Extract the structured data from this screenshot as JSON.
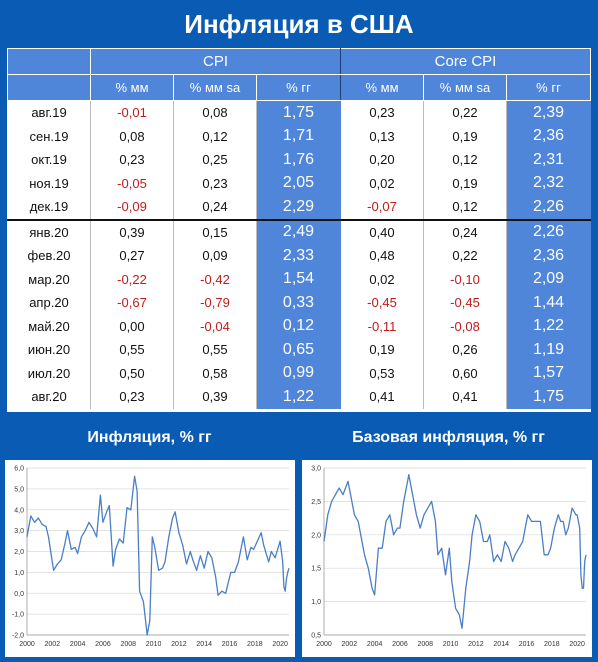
{
  "title": "Инфляция в США",
  "table": {
    "group_headers": [
      "CPI",
      "Core CPI"
    ],
    "sub_headers": [
      "% мм",
      "% мм sa",
      "% гг",
      "% мм",
      "% мм sa",
      "% гг"
    ],
    "rows": [
      {
        "label": "авг.19",
        "cpi_mm": "-0,01",
        "cpi_mm_sa": "0,08",
        "cpi_yy": "1,75",
        "core_mm": "0,23",
        "core_mm_sa": "0,22",
        "core_yy": "2,39"
      },
      {
        "label": "сен.19",
        "cpi_mm": "0,08",
        "cpi_mm_sa": "0,12",
        "cpi_yy": "1,71",
        "core_mm": "0,13",
        "core_mm_sa": "0,19",
        "core_yy": "2,36"
      },
      {
        "label": "окт.19",
        "cpi_mm": "0,23",
        "cpi_mm_sa": "0,25",
        "cpi_yy": "1,76",
        "core_mm": "0,20",
        "core_mm_sa": "0,12",
        "core_yy": "2,31"
      },
      {
        "label": "ноя.19",
        "cpi_mm": "-0,05",
        "cpi_mm_sa": "0,23",
        "cpi_yy": "2,05",
        "core_mm": "0,02",
        "core_mm_sa": "0,19",
        "core_yy": "2,32"
      },
      {
        "label": "дек.19",
        "cpi_mm": "-0,09",
        "cpi_mm_sa": "0,24",
        "cpi_yy": "2,29",
        "core_mm": "-0,07",
        "core_mm_sa": "0,12",
        "core_yy": "2,26"
      },
      {
        "label": "янв.20",
        "cpi_mm": "0,39",
        "cpi_mm_sa": "0,15",
        "cpi_yy": "2,49",
        "core_mm": "0,40",
        "core_mm_sa": "0,24",
        "core_yy": "2,26"
      },
      {
        "label": "фев.20",
        "cpi_mm": "0,27",
        "cpi_mm_sa": "0,09",
        "cpi_yy": "2,33",
        "core_mm": "0,48",
        "core_mm_sa": "0,22",
        "core_yy": "2,36"
      },
      {
        "label": "мар.20",
        "cpi_mm": "-0,22",
        "cpi_mm_sa": "-0,42",
        "cpi_yy": "1,54",
        "core_mm": "0,02",
        "core_mm_sa": "-0,10",
        "core_yy": "2,09"
      },
      {
        "label": "апр.20",
        "cpi_mm": "-0,67",
        "cpi_mm_sa": "-0,79",
        "cpi_yy": "0,33",
        "core_mm": "-0,45",
        "core_mm_sa": "-0,45",
        "core_yy": "1,44"
      },
      {
        "label": "май.20",
        "cpi_mm": "0,00",
        "cpi_mm_sa": "-0,04",
        "cpi_yy": "0,12",
        "core_mm": "-0,11",
        "core_mm_sa": "-0,08",
        "core_yy": "1,22"
      },
      {
        "label": "июн.20",
        "cpi_mm": "0,55",
        "cpi_mm_sa": "0,55",
        "cpi_yy": "0,65",
        "core_mm": "0,19",
        "core_mm_sa": "0,26",
        "core_yy": "1,19"
      },
      {
        "label": "июл.20",
        "cpi_mm": "0,50",
        "cpi_mm_sa": "0,58",
        "cpi_yy": "0,99",
        "core_mm": "0,53",
        "core_mm_sa": "0,60",
        "core_yy": "1,57"
      },
      {
        "label": "авг.20",
        "cpi_mm": "0,23",
        "cpi_mm_sa": "0,39",
        "cpi_yy": "1,22",
        "core_mm": "0,41",
        "core_mm_sa": "0,41",
        "core_yy": "1,75"
      }
    ]
  },
  "chart_data": [
    {
      "type": "line",
      "title": "Инфляция, % гг",
      "x_ticks": [
        "2000",
        "2002",
        "2004",
        "2006",
        "2008",
        "2010",
        "2012",
        "2014",
        "2016",
        "2018",
        "2020"
      ],
      "y_ticks": [
        "-2,0",
        "-1,0",
        "0,0",
        "1,0",
        "2,0",
        "3,0",
        "4,0",
        "5,0",
        "6,0"
      ],
      "ylim": [
        -2,
        6
      ],
      "xlim": [
        2000,
        2020.7
      ],
      "line_color": "#4a7ec6",
      "points": [
        [
          2000.0,
          2.7
        ],
        [
          2000.3,
          3.7
        ],
        [
          2000.6,
          3.4
        ],
        [
          2000.9,
          3.6
        ],
        [
          2001.2,
          3.3
        ],
        [
          2001.5,
          3.2
        ],
        [
          2001.7,
          2.7
        ],
        [
          2001.9,
          1.9
        ],
        [
          2002.1,
          1.1
        ],
        [
          2002.4,
          1.4
        ],
        [
          2002.7,
          1.6
        ],
        [
          2003.0,
          2.4
        ],
        [
          2003.2,
          3.0
        ],
        [
          2003.5,
          2.1
        ],
        [
          2003.8,
          2.2
        ],
        [
          2004.0,
          1.9
        ],
        [
          2004.3,
          2.7
        ],
        [
          2004.6,
          3.0
        ],
        [
          2004.9,
          3.4
        ],
        [
          2005.2,
          3.1
        ],
        [
          2005.5,
          2.7
        ],
        [
          2005.8,
          4.7
        ],
        [
          2006.0,
          3.4
        ],
        [
          2006.3,
          3.9
        ],
        [
          2006.5,
          4.2
        ],
        [
          2006.8,
          1.3
        ],
        [
          2007.0,
          2.1
        ],
        [
          2007.3,
          2.6
        ],
        [
          2007.6,
          2.4
        ],
        [
          2007.9,
          4.1
        ],
        [
          2008.2,
          4.0
        ],
        [
          2008.5,
          5.6
        ],
        [
          2008.7,
          4.9
        ],
        [
          2008.9,
          0.1
        ],
        [
          2009.2,
          -0.4
        ],
        [
          2009.5,
          -2.0
        ],
        [
          2009.7,
          -1.3
        ],
        [
          2009.9,
          2.7
        ],
        [
          2010.1,
          2.2
        ],
        [
          2010.4,
          1.1
        ],
        [
          2010.7,
          1.2
        ],
        [
          2010.9,
          1.5
        ],
        [
          2011.2,
          2.7
        ],
        [
          2011.5,
          3.6
        ],
        [
          2011.7,
          3.9
        ],
        [
          2012.0,
          2.9
        ],
        [
          2012.3,
          2.3
        ],
        [
          2012.6,
          1.4
        ],
        [
          2012.9,
          2.0
        ],
        [
          2013.1,
          1.6
        ],
        [
          2013.4,
          1.1
        ],
        [
          2013.7,
          1.8
        ],
        [
          2014.0,
          1.2
        ],
        [
          2014.3,
          2.0
        ],
        [
          2014.6,
          1.7
        ],
        [
          2014.9,
          0.8
        ],
        [
          2015.1,
          -0.1
        ],
        [
          2015.4,
          0.1
        ],
        [
          2015.7,
          0.0
        ],
        [
          2015.9,
          0.5
        ],
        [
          2016.1,
          1.0
        ],
        [
          2016.4,
          1.0
        ],
        [
          2016.7,
          1.5
        ],
        [
          2016.9,
          2.1
        ],
        [
          2017.1,
          2.7
        ],
        [
          2017.4,
          1.6
        ],
        [
          2017.7,
          2.2
        ],
        [
          2017.9,
          2.1
        ],
        [
          2018.2,
          2.5
        ],
        [
          2018.5,
          2.9
        ],
        [
          2018.7,
          2.3
        ],
        [
          2018.9,
          1.9
        ],
        [
          2019.1,
          1.5
        ],
        [
          2019.3,
          2.0
        ],
        [
          2019.6,
          1.7
        ],
        [
          2019.9,
          2.3
        ],
        [
          2020.0,
          2.5
        ],
        [
          2020.2,
          1.5
        ],
        [
          2020.3,
          0.3
        ],
        [
          2020.4,
          0.1
        ],
        [
          2020.5,
          0.7
        ],
        [
          2020.6,
          1.0
        ],
        [
          2020.7,
          1.2
        ]
      ]
    },
    {
      "type": "line",
      "title": "Базовая инфляция, % гг",
      "x_ticks": [
        "2000",
        "2002",
        "2004",
        "2006",
        "2008",
        "2010",
        "2012",
        "2014",
        "2016",
        "2018",
        "2020"
      ],
      "y_ticks": [
        "0,5",
        "1,0",
        "1,5",
        "2,0",
        "2,5",
        "3,0"
      ],
      "ylim": [
        0.5,
        3.0
      ],
      "xlim": [
        2000,
        2020.7
      ],
      "line_color": "#4a7ec6",
      "points": [
        [
          2000.0,
          1.9
        ],
        [
          2000.3,
          2.3
        ],
        [
          2000.6,
          2.5
        ],
        [
          2000.9,
          2.6
        ],
        [
          2001.2,
          2.7
        ],
        [
          2001.5,
          2.6
        ],
        [
          2001.7,
          2.7
        ],
        [
          2001.9,
          2.8
        ],
        [
          2002.1,
          2.6
        ],
        [
          2002.4,
          2.3
        ],
        [
          2002.7,
          2.2
        ],
        [
          2003.0,
          1.9
        ],
        [
          2003.2,
          1.7
        ],
        [
          2003.5,
          1.5
        ],
        [
          2003.8,
          1.2
        ],
        [
          2004.0,
          1.1
        ],
        [
          2004.3,
          1.8
        ],
        [
          2004.6,
          1.8
        ],
        [
          2004.9,
          2.2
        ],
        [
          2005.2,
          2.3
        ],
        [
          2005.5,
          2.0
        ],
        [
          2005.8,
          2.1
        ],
        [
          2006.0,
          2.1
        ],
        [
          2006.3,
          2.5
        ],
        [
          2006.5,
          2.7
        ],
        [
          2006.7,
          2.9
        ],
        [
          2007.0,
          2.6
        ],
        [
          2007.3,
          2.3
        ],
        [
          2007.6,
          2.1
        ],
        [
          2007.9,
          2.3
        ],
        [
          2008.2,
          2.4
        ],
        [
          2008.5,
          2.5
        ],
        [
          2008.8,
          2.2
        ],
        [
          2009.0,
          1.7
        ],
        [
          2009.3,
          1.8
        ],
        [
          2009.6,
          1.4
        ],
        [
          2009.9,
          1.8
        ],
        [
          2010.1,
          1.3
        ],
        [
          2010.4,
          0.9
        ],
        [
          2010.7,
          0.8
        ],
        [
          2010.9,
          0.6
        ],
        [
          2011.2,
          1.2
        ],
        [
          2011.5,
          1.6
        ],
        [
          2011.7,
          2.0
        ],
        [
          2012.0,
          2.3
        ],
        [
          2012.3,
          2.2
        ],
        [
          2012.6,
          1.9
        ],
        [
          2012.9,
          1.9
        ],
        [
          2013.1,
          2.0
        ],
        [
          2013.4,
          1.6
        ],
        [
          2013.7,
          1.7
        ],
        [
          2014.0,
          1.6
        ],
        [
          2014.3,
          1.9
        ],
        [
          2014.6,
          1.8
        ],
        [
          2014.9,
          1.6
        ],
        [
          2015.1,
          1.7
        ],
        [
          2015.4,
          1.8
        ],
        [
          2015.7,
          1.9
        ],
        [
          2015.9,
          2.1
        ],
        [
          2016.1,
          2.3
        ],
        [
          2016.4,
          2.2
        ],
        [
          2016.7,
          2.2
        ],
        [
          2016.9,
          2.2
        ],
        [
          2017.1,
          2.2
        ],
        [
          2017.4,
          1.7
        ],
        [
          2017.7,
          1.7
        ],
        [
          2017.9,
          1.8
        ],
        [
          2018.2,
          2.1
        ],
        [
          2018.5,
          2.3
        ],
        [
          2018.7,
          2.2
        ],
        [
          2018.9,
          2.2
        ],
        [
          2019.1,
          2.0
        ],
        [
          2019.3,
          2.1
        ],
        [
          2019.6,
          2.4
        ],
        [
          2019.9,
          2.3
        ],
        [
          2020.0,
          2.3
        ],
        [
          2020.2,
          2.1
        ],
        [
          2020.3,
          1.4
        ],
        [
          2020.4,
          1.2
        ],
        [
          2020.5,
          1.2
        ],
        [
          2020.6,
          1.6
        ],
        [
          2020.7,
          1.7
        ]
      ]
    }
  ]
}
